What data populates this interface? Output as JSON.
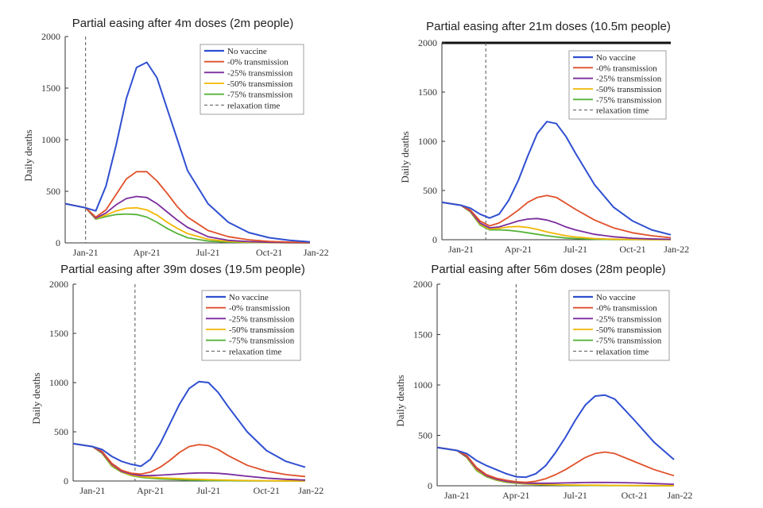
{
  "chart_data": [
    {
      "type": "line",
      "title": "Partial easing after 4m doses (2m people)",
      "xlabel": "",
      "ylabel": "Daily deaths",
      "xlim": [
        0,
        12
      ],
      "ylim": [
        0,
        2000
      ],
      "x_ticks": [
        "Jan-21",
        "Apr-21",
        "Jul-21",
        "Oct-21",
        "Jan-22"
      ],
      "x_tick_positions": [
        1,
        4,
        7,
        10,
        12.3
      ],
      "y_ticks": [
        0,
        500,
        1000,
        1500,
        2000
      ],
      "relaxation_time": 1,
      "legend": "top-right",
      "x": [
        0,
        1,
        1.5,
        2,
        2.5,
        3,
        3.5,
        4,
        4.5,
        5,
        5.5,
        6,
        7,
        8,
        9,
        10,
        11,
        12
      ],
      "series": [
        {
          "name": "No vaccine",
          "values": [
            380,
            340,
            310,
            550,
            950,
            1400,
            1700,
            1750,
            1600,
            1300,
            1000,
            700,
            380,
            200,
            100,
            50,
            25,
            10
          ]
        },
        {
          "name": "-0% transmission",
          "values": [
            380,
            340,
            250,
            320,
            470,
            620,
            690,
            690,
            600,
            480,
            350,
            250,
            120,
            60,
            30,
            15,
            8,
            5
          ]
        },
        {
          "name": "-25% transmission",
          "values": [
            380,
            340,
            240,
            290,
            370,
            430,
            450,
            440,
            380,
            300,
            220,
            150,
            60,
            25,
            12,
            6,
            3,
            2
          ]
        },
        {
          "name": "-50% transmission",
          "values": [
            380,
            340,
            235,
            270,
            310,
            335,
            340,
            320,
            270,
            200,
            140,
            90,
            35,
            15,
            8,
            4,
            2,
            1
          ]
        },
        {
          "name": "-75% transmission",
          "values": [
            380,
            340,
            230,
            255,
            275,
            280,
            275,
            250,
            200,
            140,
            90,
            50,
            18,
            8,
            4,
            2,
            1,
            0
          ]
        }
      ],
      "legend_relaxation": "relaxation time"
    },
    {
      "type": "line",
      "title": "Partial easing after 21m doses (10.5m people)",
      "xlabel": "",
      "ylabel": "Daily deaths",
      "xlim": [
        0,
        12
      ],
      "ylim": [
        0,
        2000
      ],
      "x_ticks": [
        "Jan-21",
        "Apr-21",
        "Jul-21",
        "Oct-21",
        "Jan-22"
      ],
      "x_tick_positions": [
        1,
        4,
        7,
        10,
        12.3
      ],
      "y_ticks": [
        0,
        500,
        1000,
        1500,
        2000
      ],
      "relaxation_time": 2.3,
      "legend": "top-right",
      "x": [
        0,
        1,
        1.5,
        2,
        2.5,
        3,
        3.5,
        4,
        4.5,
        5,
        5.5,
        6,
        6.5,
        7,
        8,
        9,
        10,
        11,
        12
      ],
      "series": [
        {
          "name": "No vaccine",
          "values": [
            380,
            350,
            320,
            260,
            220,
            260,
            400,
            600,
            850,
            1080,
            1200,
            1180,
            1050,
            880,
            560,
            330,
            190,
            100,
            50
          ]
        },
        {
          "name": "-0% transmission",
          "values": [
            380,
            350,
            300,
            190,
            140,
            170,
            230,
            300,
            380,
            430,
            450,
            430,
            370,
            310,
            200,
            120,
            70,
            40,
            20
          ]
        },
        {
          "name": "-25% transmission",
          "values": [
            380,
            350,
            290,
            170,
            120,
            130,
            160,
            190,
            210,
            215,
            200,
            170,
            130,
            100,
            55,
            30,
            15,
            8,
            4
          ]
        },
        {
          "name": "-50% transmission",
          "values": [
            380,
            350,
            285,
            160,
            110,
            115,
            130,
            135,
            125,
            105,
            80,
            60,
            40,
            28,
            12,
            6,
            3,
            1,
            0
          ]
        },
        {
          "name": "-75% transmission",
          "values": [
            380,
            350,
            280,
            150,
            100,
            100,
            95,
            85,
            70,
            55,
            40,
            28,
            18,
            12,
            5,
            2,
            1,
            0,
            0
          ]
        }
      ],
      "legend_relaxation": "relaxation time"
    },
    {
      "type": "line",
      "title": "Partial easing after 39m doses (19.5m people)",
      "xlabel": "",
      "ylabel": "Daily deaths",
      "xlim": [
        0,
        12
      ],
      "ylim": [
        0,
        2000
      ],
      "x_ticks": [
        "Jan-21",
        "Apr-21",
        "Jul-21",
        "Oct-21",
        "Jan-22"
      ],
      "x_tick_positions": [
        1,
        4,
        7,
        10,
        12.3
      ],
      "y_ticks": [
        0,
        500,
        1000,
        1500,
        2000
      ],
      "relaxation_time": 3.2,
      "legend": "top-right",
      "x": [
        0,
        1,
        1.5,
        2,
        2.5,
        3,
        3.5,
        4,
        4.5,
        5,
        5.5,
        6,
        6.5,
        7,
        7.5,
        8,
        9,
        10,
        11,
        12
      ],
      "series": [
        {
          "name": "No vaccine",
          "values": [
            380,
            350,
            320,
            250,
            200,
            170,
            150,
            220,
            380,
            580,
            780,
            940,
            1010,
            1000,
            900,
            760,
            500,
            310,
            200,
            140
          ]
        },
        {
          "name": "-0% transmission",
          "values": [
            380,
            350,
            300,
            180,
            110,
            80,
            70,
            90,
            140,
            210,
            290,
            350,
            370,
            360,
            320,
            260,
            160,
            100,
            65,
            45
          ]
        },
        {
          "name": "-25% transmission",
          "values": [
            380,
            350,
            290,
            170,
            100,
            70,
            55,
            55,
            60,
            65,
            72,
            78,
            82,
            82,
            78,
            70,
            48,
            30,
            18,
            10
          ]
        },
        {
          "name": "-50% transmission",
          "values": [
            380,
            350,
            285,
            160,
            95,
            60,
            45,
            38,
            32,
            28,
            24,
            20,
            17,
            14,
            11,
            9,
            5,
            3,
            2,
            1
          ]
        },
        {
          "name": "-75% transmission",
          "values": [
            380,
            350,
            280,
            150,
            90,
            55,
            38,
            28,
            22,
            17,
            13,
            10,
            8,
            6,
            4,
            3,
            2,
            1,
            0,
            0
          ]
        }
      ],
      "legend_relaxation": "relaxation time"
    },
    {
      "type": "line",
      "title": "Partial easing after 56m doses (28m people)",
      "xlabel": "",
      "ylabel": "Daily deaths",
      "xlim": [
        0,
        12
      ],
      "ylim": [
        0,
        2000
      ],
      "x_ticks": [
        "Jan-21",
        "Apr-21",
        "Jul-21",
        "Oct-21",
        "Jan-22"
      ],
      "x_tick_positions": [
        1,
        4,
        7,
        10,
        12.3
      ],
      "y_ticks": [
        0,
        500,
        1000,
        1500,
        2000
      ],
      "relaxation_time": 4,
      "legend": "top-right",
      "x": [
        0,
        1,
        1.5,
        2,
        2.5,
        3,
        3.5,
        4,
        4.5,
        5,
        5.5,
        6,
        6.5,
        7,
        7.5,
        8,
        8.5,
        9,
        10,
        11,
        12
      ],
      "series": [
        {
          "name": "No vaccine",
          "values": [
            380,
            350,
            320,
            250,
            200,
            160,
            120,
            90,
            85,
            120,
            200,
            330,
            480,
            650,
            800,
            890,
            900,
            860,
            650,
            430,
            260
          ]
        },
        {
          "name": "-0% transmission",
          "values": [
            380,
            350,
            300,
            180,
            110,
            75,
            55,
            40,
            35,
            45,
            70,
            110,
            160,
            220,
            280,
            320,
            335,
            320,
            240,
            160,
            100
          ]
        },
        {
          "name": "-25% transmission",
          "values": [
            380,
            350,
            290,
            170,
            100,
            65,
            45,
            32,
            26,
            25,
            25,
            26,
            28,
            30,
            32,
            33,
            33,
            32,
            28,
            22,
            15
          ]
        },
        {
          "name": "-50% transmission",
          "values": [
            380,
            350,
            285,
            160,
            95,
            60,
            40,
            28,
            20,
            16,
            13,
            11,
            9,
            8,
            7,
            6,
            5,
            4,
            3,
            2,
            1
          ]
        },
        {
          "name": "-75% transmission",
          "values": [
            380,
            350,
            280,
            150,
            90,
            55,
            35,
            25,
            18,
            13,
            10,
            8,
            6,
            5,
            4,
            3,
            2,
            2,
            1,
            0,
            0
          ]
        }
      ],
      "legend_relaxation": "relaxation time"
    }
  ],
  "colors": {
    "No vaccine": "#2f4fd1",
    "-0% transmission": "#e0502a",
    "-25% transmission": "#7b2d9e",
    "-50% transmission": "#f2b705",
    "-75% transmission": "#57b33a",
    "relaxation": "#555555",
    "axis": "#333333"
  }
}
